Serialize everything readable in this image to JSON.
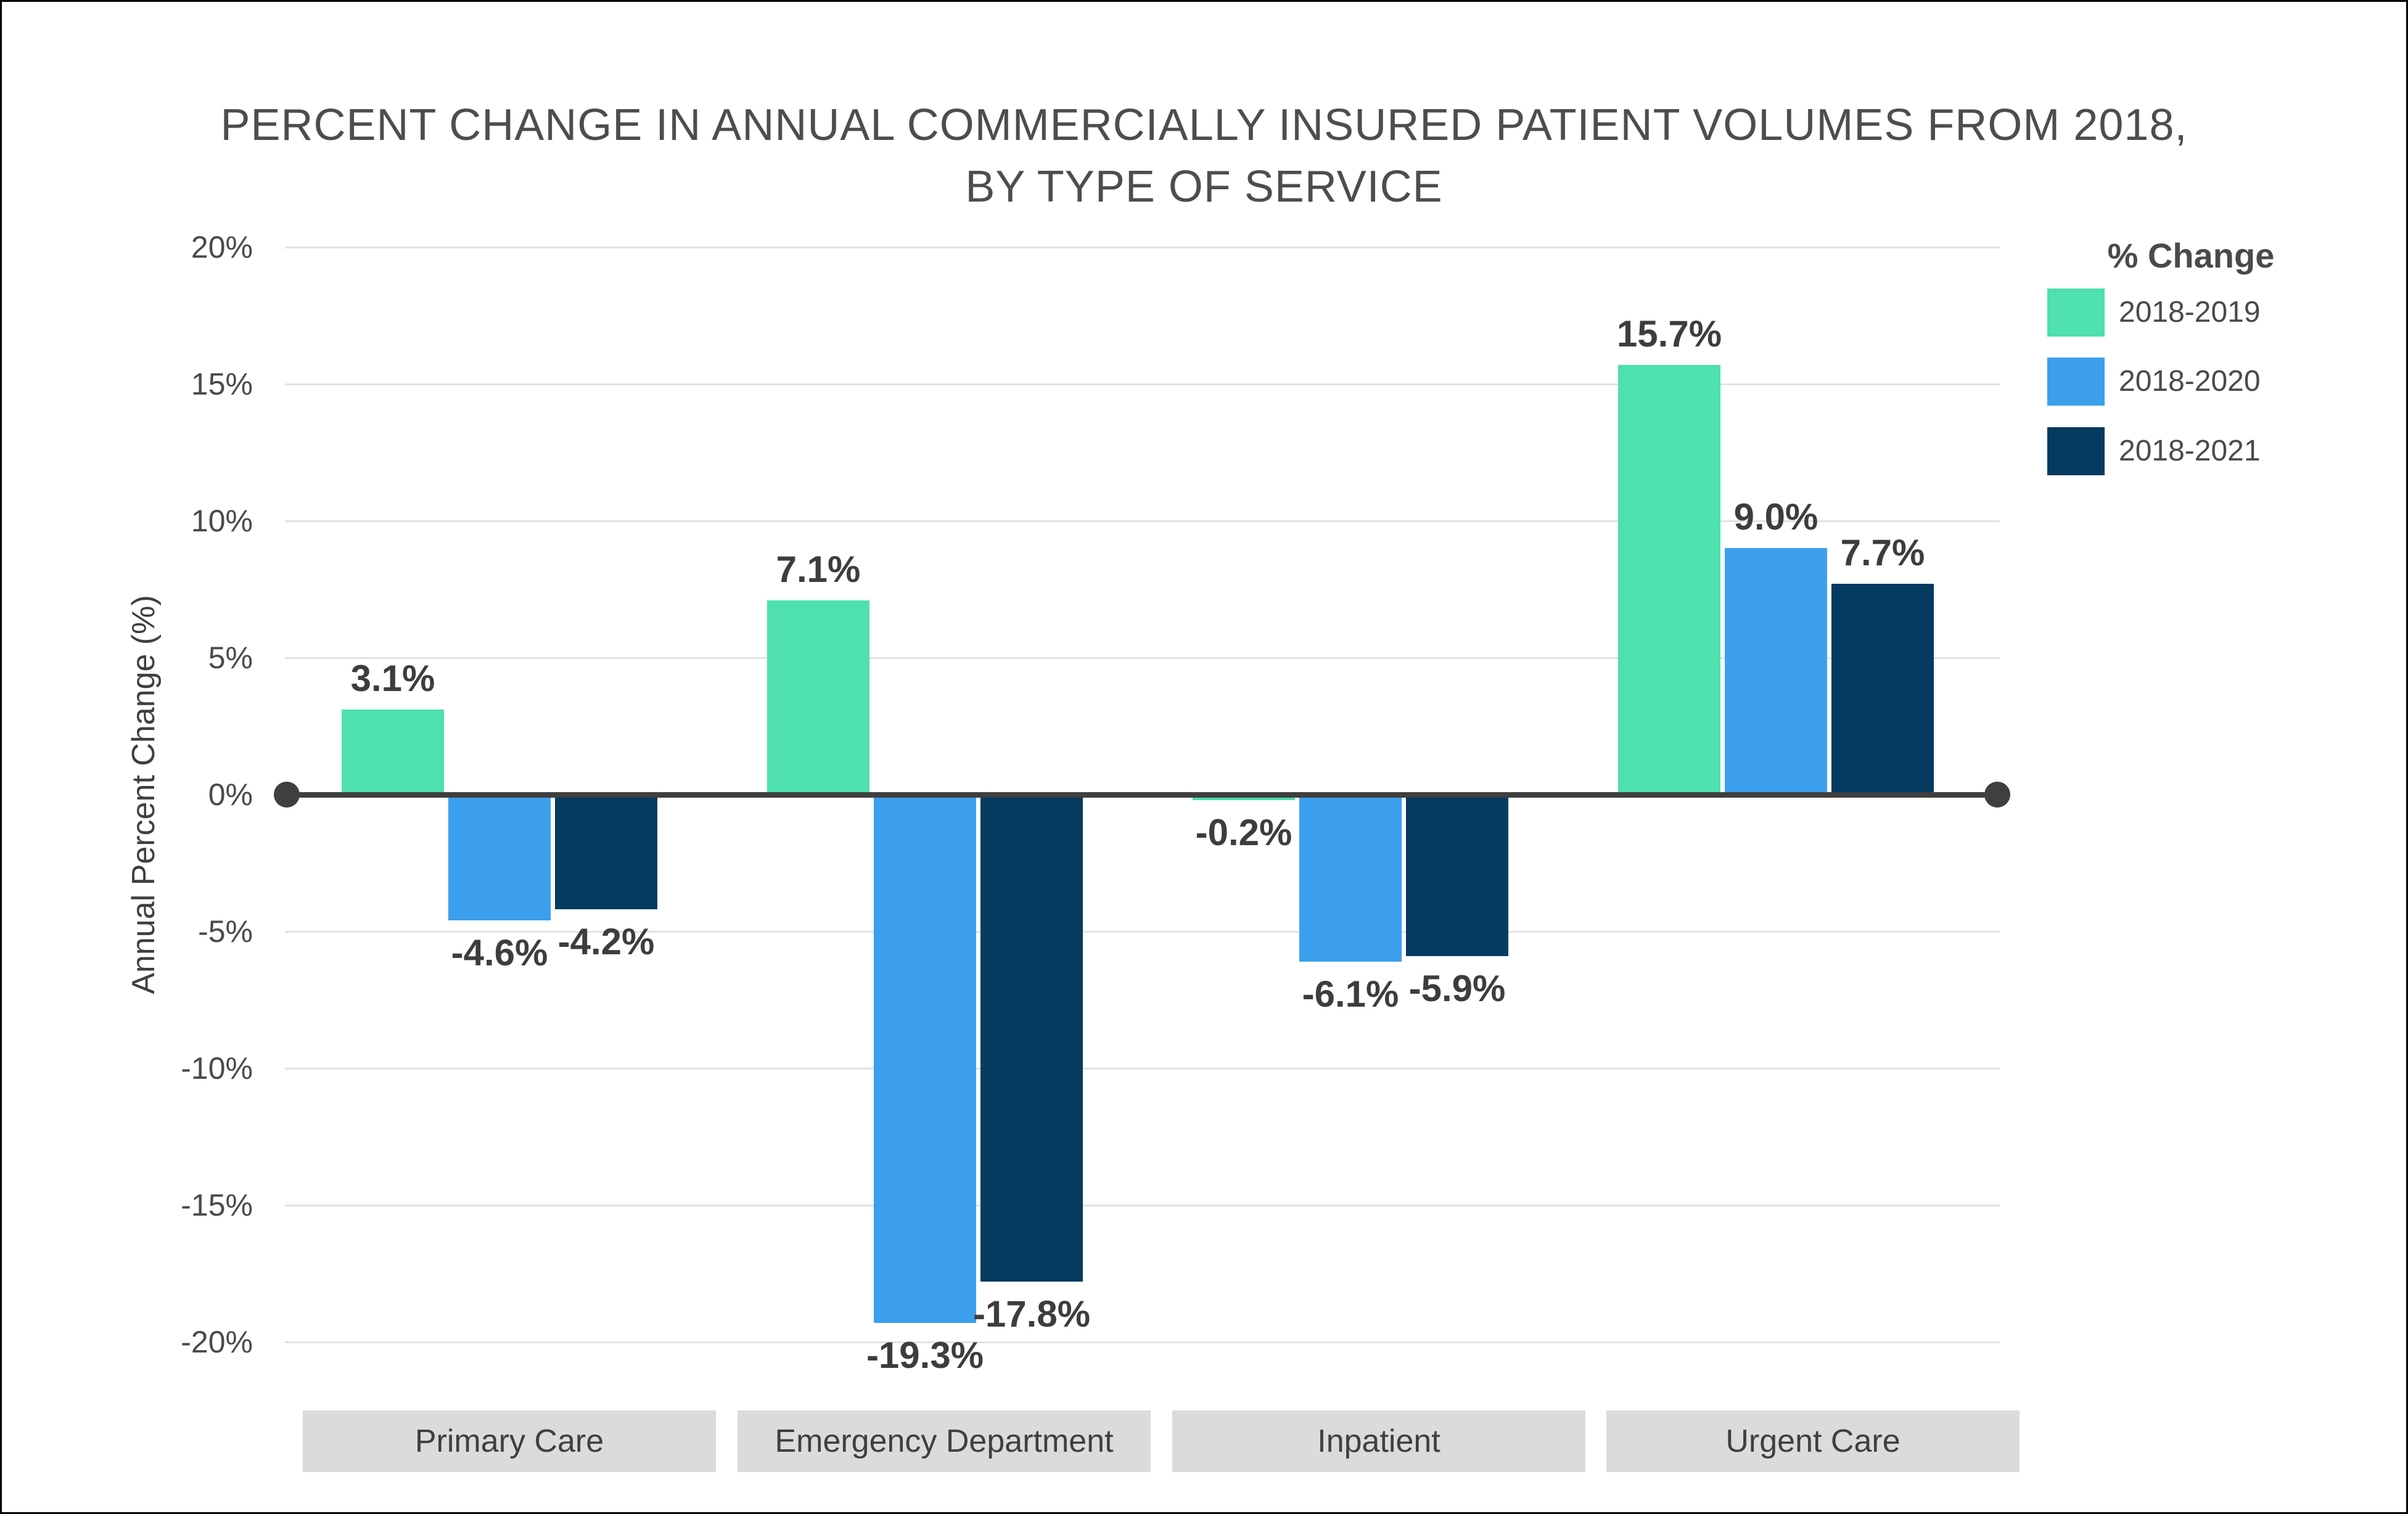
{
  "title": {
    "line1": "PERCENT CHANGE IN ANNUAL COMMERCIALLY INSURED PATIENT VOLUMES FROM 2018,",
    "line2": "BY TYPE OF SERVICE"
  },
  "y_axis": {
    "label": "Annual Percent Change (%)",
    "ticks": [
      "20%",
      "15%",
      "10%",
      "5%",
      "0%",
      "-5%",
      "-10%",
      "-15%",
      "-20%"
    ]
  },
  "legend": {
    "title": "% Change",
    "items": [
      {
        "label": "2018-2019",
        "color": "#4ee0ad"
      },
      {
        "label": "2018-2020",
        "color": "#3c9fed"
      },
      {
        "label": "2018-2021",
        "color": "#053a61"
      }
    ]
  },
  "colors": {
    "axis": "#3f3f3f",
    "gridline": "#e2e2e2",
    "title_text": "#4d4d4d",
    "category_box_bg": "#dbdbdb",
    "green": "#4ee0ad",
    "blue": "#3c9fed",
    "navy": "#053a61"
  },
  "chart_data": {
    "type": "bar",
    "title": "PERCENT CHANGE IN ANNUAL COMMERCIALLY INSURED PATIENT VOLUMES FROM 2018, BY TYPE OF SERVICE",
    "categories": [
      "Primary Care",
      "Emergency Department",
      "Inpatient",
      "Urgent Care"
    ],
    "series": [
      {
        "name": "2018-2019",
        "color": "#4ee0ad",
        "values": [
          3.1,
          7.1,
          -0.2,
          15.7
        ]
      },
      {
        "name": "2018-2020",
        "color": "#3c9fed",
        "values": [
          -4.6,
          -19.3,
          -6.1,
          9.0
        ]
      },
      {
        "name": "2018-2021",
        "color": "#053a61",
        "values": [
          -4.2,
          -17.8,
          -5.9,
          7.7
        ]
      }
    ],
    "value_labels": [
      [
        "3.1%",
        "7.1%",
        "-0.2%",
        "15.7%"
      ],
      [
        "-4.6%",
        "-19.3%",
        "-6.1%",
        "9.0%"
      ],
      [
        "-4.2%",
        "-17.8%",
        "-5.9%",
        "7.7%"
      ]
    ],
    "xlabel": "",
    "ylabel": "Annual Percent Change (%)",
    "ylim": [
      -20,
      20
    ],
    "ytick_step": 5,
    "grid": true,
    "legend_title": "% Change",
    "legend_position": "top-right"
  }
}
